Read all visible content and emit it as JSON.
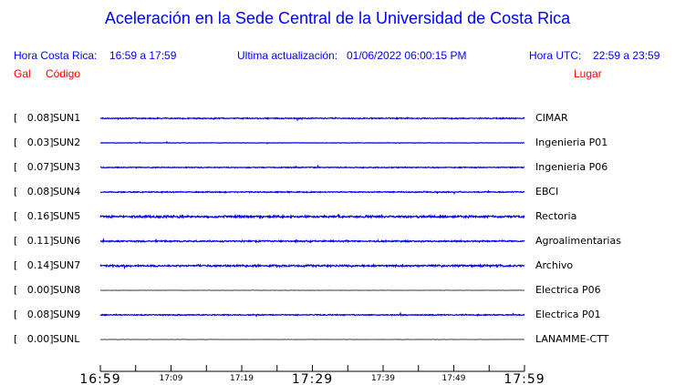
{
  "header": {
    "title": "Aceleración en la Sede Central de la Universidad de Costa Rica",
    "local_label": "Hora Costa Rica:",
    "local_range": "16:59 a 17:59",
    "update_label": "Ultima actualización:",
    "update_value": "01/06/2022 06:00:15 PM",
    "utc_label": "Hora UTC:",
    "utc_range": "22:59 a 23:59",
    "col_gal": "Gal",
    "col_code": "Código",
    "col_place": "Lugar"
  },
  "chart_data": {
    "type": "line",
    "trace_color": "#0000ff",
    "x_ticks": [
      "16:59",
      "17:09",
      "17:19",
      "17:29",
      "17:39",
      "17:49",
      "17:59"
    ],
    "x_range": [
      "16:59",
      "17:59"
    ],
    "stations": [
      {
        "gal": "[   0.08]",
        "code": "SUN1",
        "place": "CIMAR",
        "peak": 0.08
      },
      {
        "gal": "[   0.03]",
        "code": "SUN2",
        "place": "Ingenieria P01",
        "peak": 0.03
      },
      {
        "gal": "[   0.07]",
        "code": "SUN3",
        "place": "Ingenieria P06",
        "peak": 0.07
      },
      {
        "gal": "[   0.08]",
        "code": "SUN4",
        "place": "EBCI",
        "peak": 0.08
      },
      {
        "gal": "[   0.16]",
        "code": "SUN5",
        "place": "Rectoria",
        "peak": 0.16
      },
      {
        "gal": "[   0.11]",
        "code": "SUN6",
        "place": "Agroalimentarias",
        "peak": 0.11
      },
      {
        "gal": "[   0.14]",
        "code": "SUN7",
        "place": "Archivo",
        "peak": 0.14
      },
      {
        "gal": "[   0.00]",
        "code": "SUN8",
        "place": "Electrica P06",
        "peak": 0.0
      },
      {
        "gal": "[   0.08]",
        "code": "SUN9",
        "place": "Electrica P01",
        "peak": 0.08
      },
      {
        "gal": "[   0.00]",
        "code": "SUNL",
        "place": "LANAMME-CTT",
        "peak": 0.0
      }
    ]
  }
}
